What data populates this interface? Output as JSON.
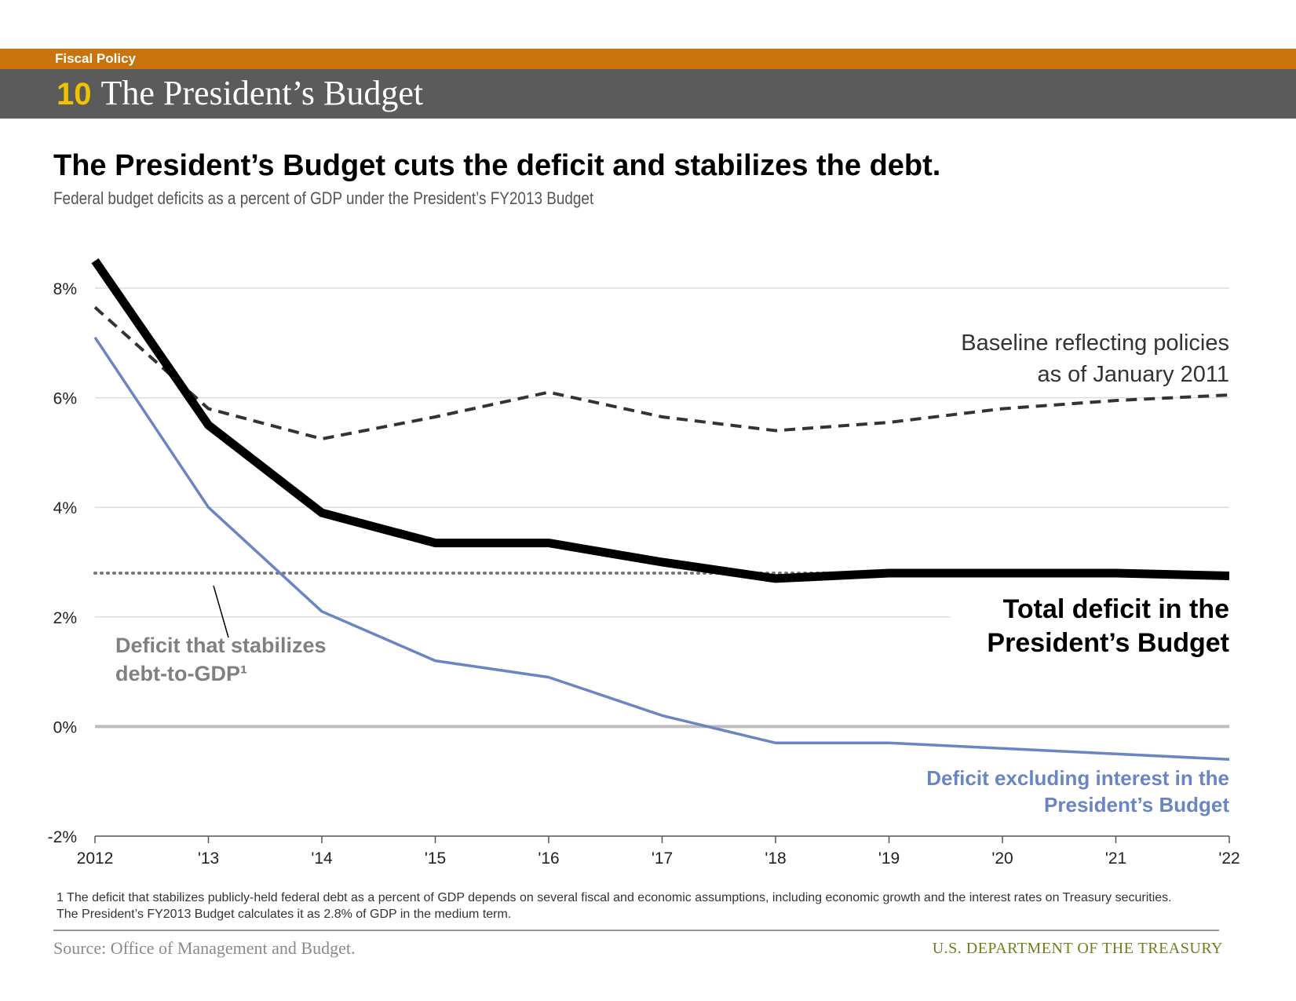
{
  "header": {
    "section": "Fiscal Policy",
    "chapter_number": "10",
    "chapter_title": "The President’s Budget"
  },
  "headline": "The President’s Budget cuts the deficit and stabilizes the debt.",
  "subtitle": "Federal budget deficits as a percent of GDP under the President’s FY2013 Budget",
  "colors": {
    "section_band": "#c8730c",
    "title_band": "#5b5b5b",
    "chapter_number": "#f2c200",
    "total_deficit": "#000000",
    "baseline": "#333333",
    "stabilizing": "#777777",
    "excluding_interest": "#6a85c4",
    "department": "#6f7f1c"
  },
  "chart_data": {
    "type": "line",
    "categories": [
      "2012",
      "'13",
      "'14",
      "'15",
      "'16",
      "'17",
      "'18",
      "'19",
      "'20",
      "'21",
      "'22"
    ],
    "ylim": [
      -2,
      8
    ],
    "yticks": [
      -2,
      0,
      2,
      4,
      6,
      8
    ],
    "ytick_labels": [
      "-2%",
      "0%",
      "2%",
      "4%",
      "6%",
      "8%"
    ],
    "grid": true,
    "series": [
      {
        "key": "total",
        "name": "Total deficit in the President’s Budget",
        "style": "solid-thick",
        "values": [
          8.5,
          5.5,
          3.9,
          3.35,
          3.35,
          3.0,
          2.7,
          2.8,
          2.8,
          2.8,
          2.75
        ]
      },
      {
        "key": "baseline",
        "name": "Baseline reflecting policies as of January 2011",
        "style": "dashed",
        "values": [
          7.65,
          5.8,
          5.25,
          5.65,
          6.1,
          5.65,
          5.4,
          5.55,
          5.8,
          5.95,
          6.05
        ]
      },
      {
        "key": "stabilizing",
        "name": "Deficit that stabilizes debt-to-GDP¹",
        "style": "dotted",
        "values": [
          2.8,
          2.8,
          2.8,
          2.8,
          2.8,
          2.8,
          2.8,
          2.8,
          2.8,
          2.8,
          2.8
        ]
      },
      {
        "key": "excluding_interest",
        "name": "Deficit excluding interest in the President’s Budget",
        "style": "solid",
        "values": [
          7.1,
          4.0,
          2.1,
          1.2,
          0.9,
          0.2,
          -0.3,
          -0.3,
          -0.4,
          -0.5,
          -0.6
        ]
      }
    ],
    "annotations": {
      "baseline": [
        "Baseline reflecting policies",
        "as of January 2011"
      ],
      "total": [
        "Total deficit in the",
        "President’s Budget"
      ],
      "stabilizing": [
        "Deficit that stabilizes",
        "debt-to-GDP¹"
      ],
      "excluding_interest": [
        "Deficit excluding interest in the",
        "President’s Budget"
      ]
    }
  },
  "footnote": "1 The deficit that stabilizes publicly-held federal debt as a percent of GDP depends on several fiscal and economic assumptions, including economic growth and the interest rates on Treasury securities. The President’s FY2013 Budget calculates it as 2.8% of GDP in the medium term.",
  "source": "Source: Office of Management and Budget.",
  "department": "U.S. DEPARTMENT OF THE TREASURY"
}
